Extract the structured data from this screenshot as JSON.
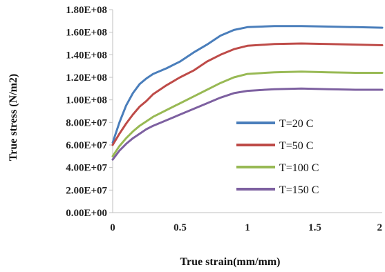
{
  "chart_data": {
    "type": "line",
    "title": "",
    "xlabel": "True strain(mm/mm)",
    "ylabel": "True  stress (N/m2)",
    "xlim": [
      0,
      2
    ],
    "ylim": [
      0,
      180000000
    ],
    "x_ticks": [
      {
        "value": 0,
        "label": "0"
      },
      {
        "value": 0.5,
        "label": "0.5"
      },
      {
        "value": 1,
        "label": "1"
      },
      {
        "value": 1.5,
        "label": "1.5"
      },
      {
        "value": 2,
        "label": "2"
      }
    ],
    "y_ticks": [
      {
        "value": 0,
        "label": "0.00E+00"
      },
      {
        "value": 20000000,
        "label": "2.00E+07"
      },
      {
        "value": 40000000,
        "label": "4.00E+07"
      },
      {
        "value": 60000000,
        "label": "6.00E+07"
      },
      {
        "value": 80000000,
        "label": "8.00E+07"
      },
      {
        "value": 100000000,
        "label": "1.00E+08"
      },
      {
        "value": 120000000,
        "label": "1.20E+08"
      },
      {
        "value": 140000000,
        "label": "1.40E+08"
      },
      {
        "value": 160000000,
        "label": "1.60E+08"
      },
      {
        "value": 180000000,
        "label": "1.80E+08"
      }
    ],
    "grid": false,
    "legend_position": "right",
    "series": [
      {
        "name": "T=20 C",
        "color": "#4a7ebb",
        "x": [
          0,
          0.05,
          0.1,
          0.15,
          0.2,
          0.25,
          0.3,
          0.4,
          0.5,
          0.6,
          0.7,
          0.8,
          0.9,
          1.0,
          1.2,
          1.4,
          1.6,
          1.8,
          2.0
        ],
        "y": [
          62000000,
          80000000,
          95000000,
          106000000,
          114000000,
          119000000,
          123000000,
          128000000,
          134000000,
          142000000,
          149000000,
          157000000,
          162000000,
          164500000,
          165500000,
          165500000,
          165000000,
          164500000,
          164000000
        ]
      },
      {
        "name": "T=50 C",
        "color": "#be4b48",
        "x": [
          0,
          0.05,
          0.1,
          0.15,
          0.2,
          0.25,
          0.3,
          0.4,
          0.5,
          0.6,
          0.7,
          0.8,
          0.9,
          1.0,
          1.2,
          1.4,
          1.6,
          1.8,
          2.0
        ],
        "y": [
          60000000,
          70000000,
          79000000,
          87000000,
          94000000,
          99000000,
          105000000,
          113000000,
          120000000,
          126000000,
          134000000,
          140000000,
          145000000,
          148000000,
          149500000,
          150000000,
          149500000,
          149000000,
          148500000
        ]
      },
      {
        "name": "T=100 C",
        "color": "#98b954",
        "x": [
          0,
          0.05,
          0.1,
          0.15,
          0.2,
          0.25,
          0.3,
          0.4,
          0.5,
          0.6,
          0.7,
          0.8,
          0.9,
          1.0,
          1.2,
          1.4,
          1.6,
          1.8,
          2.0
        ],
        "y": [
          50000000,
          59000000,
          66000000,
          72000000,
          77000000,
          81000000,
          85000000,
          91000000,
          97000000,
          103000000,
          109000000,
          115000000,
          120000000,
          123000000,
          124500000,
          125000000,
          124500000,
          124000000,
          124000000
        ]
      },
      {
        "name": "T=150 C",
        "color": "#7d60a0",
        "x": [
          0,
          0.05,
          0.1,
          0.15,
          0.2,
          0.25,
          0.3,
          0.4,
          0.5,
          0.6,
          0.7,
          0.8,
          0.9,
          1.0,
          1.2,
          1.4,
          1.6,
          1.8,
          2.0
        ],
        "y": [
          47000000,
          55000000,
          61000000,
          66000000,
          70000000,
          74000000,
          77000000,
          82000000,
          87000000,
          92000000,
          97000000,
          102000000,
          106000000,
          108000000,
          109500000,
          110000000,
          109500000,
          109000000,
          109000000
        ]
      }
    ]
  }
}
